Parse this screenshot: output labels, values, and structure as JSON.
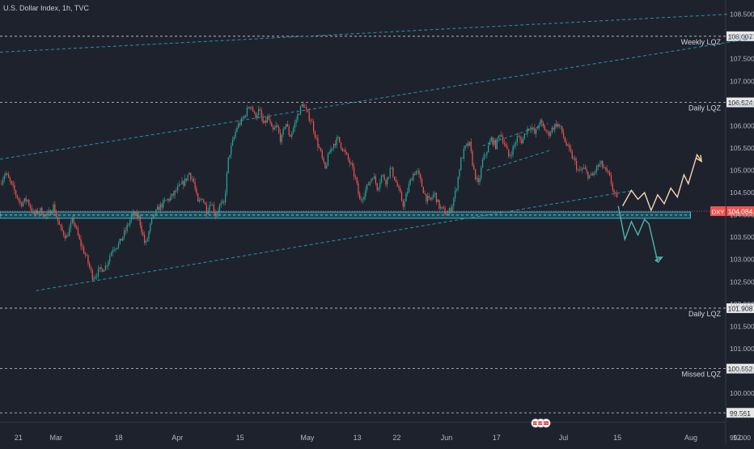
{
  "header": {
    "symbol_title": "U.S. Dollar Index, 1h, TVC"
  },
  "chart_data": {
    "type": "candlestick",
    "title": "U.S. Dollar Index, 1h, TVC",
    "y_axis": {
      "min": 98.84,
      "max": 108.82,
      "ticks": [
        "108.500",
        "108.000",
        "107.500",
        "107.000",
        "106.500",
        "106.000",
        "105.500",
        "105.000",
        "104.500",
        "104.000",
        "103.500",
        "103.000",
        "102.500",
        "102.000",
        "101.500",
        "101.000",
        "100.500",
        "100.000",
        "99.500",
        "99.000"
      ]
    },
    "x_axis": {
      "ticks": [
        {
          "label": "21",
          "t": 0.0
        },
        {
          "label": "Mar",
          "t": 8.6
        },
        {
          "label": "18",
          "t": 22.9
        },
        {
          "label": "Apr",
          "t": 36.3
        },
        {
          "label": "15",
          "t": 50.6
        },
        {
          "label": "May",
          "t": 66.0
        },
        {
          "label": "13",
          "t": 77.4
        },
        {
          "label": "22",
          "t": 86.4
        },
        {
          "label": "Jun",
          "t": 97.8
        },
        {
          "label": "17",
          "t": 109.2
        },
        {
          "label": "Jul",
          "t": 124.5
        },
        {
          "label": "15",
          "t": 136.8
        },
        {
          "label": "Aug",
          "t": 153.6
        },
        {
          "label": "12",
          "t": 164.1
        }
      ],
      "t_min": -4.2,
      "t_max": 168.0
    },
    "price_path": [
      [
        -4.2,
        104.7
      ],
      [
        -3,
        104.95
      ],
      [
        -1,
        104.55
      ],
      [
        0.5,
        104.25
      ],
      [
        2,
        104.35
      ],
      [
        3.5,
        104.0
      ],
      [
        5,
        104.1
      ],
      [
        6.5,
        103.95
      ],
      [
        8,
        104.2
      ],
      [
        9.5,
        103.7
      ],
      [
        11,
        103.5
      ],
      [
        12.5,
        103.9
      ],
      [
        14,
        103.4
      ],
      [
        15.5,
        103.05
      ],
      [
        17,
        102.6
      ],
      [
        18.5,
        102.75
      ],
      [
        20,
        102.85
      ],
      [
        21.5,
        103.25
      ],
      [
        23,
        103.35
      ],
      [
        24.5,
        103.65
      ],
      [
        26,
        104.0
      ],
      [
        27.5,
        103.95
      ],
      [
        29,
        103.3
      ],
      [
        30.5,
        103.9
      ],
      [
        32,
        104.15
      ],
      [
        33.5,
        104.3
      ],
      [
        35,
        104.4
      ],
      [
        36.5,
        104.6
      ],
      [
        38,
        104.75
      ],
      [
        39,
        104.95
      ],
      [
        40,
        104.75
      ],
      [
        41,
        104.25
      ],
      [
        42,
        104.4
      ],
      [
        43,
        104.1
      ],
      [
        44,
        104.3
      ],
      [
        45,
        104.0
      ],
      [
        46,
        104.2
      ],
      [
        47,
        104.25
      ],
      [
        48,
        105.3
      ],
      [
        49,
        105.65
      ],
      [
        50,
        106.0
      ],
      [
        51,
        106.1
      ],
      [
        52,
        106.3
      ],
      [
        53,
        106.5
      ],
      [
        54,
        106.2
      ],
      [
        55,
        106.35
      ],
      [
        56,
        106.0
      ],
      [
        57,
        106.2
      ],
      [
        58,
        105.85
      ],
      [
        59,
        106.0
      ],
      [
        60,
        105.65
      ],
      [
        61,
        106.1
      ],
      [
        62,
        105.75
      ],
      [
        63,
        106.0
      ],
      [
        64,
        106.3
      ],
      [
        65,
        106.5
      ],
      [
        66,
        106.25
      ],
      [
        67,
        106.1
      ],
      [
        68,
        105.7
      ],
      [
        69,
        105.4
      ],
      [
        70,
        105.0
      ],
      [
        71,
        105.4
      ],
      [
        72,
        105.6
      ],
      [
        73,
        105.7
      ],
      [
        74,
        105.5
      ],
      [
        75,
        105.3
      ],
      [
        76,
        105.1
      ],
      [
        77,
        104.8
      ],
      [
        78,
        104.3
      ],
      [
        79,
        104.5
      ],
      [
        80,
        104.7
      ],
      [
        81,
        104.9
      ],
      [
        82,
        104.6
      ],
      [
        83,
        104.9
      ],
      [
        84,
        104.75
      ],
      [
        85,
        105.05
      ],
      [
        86,
        104.8
      ],
      [
        87,
        104.5
      ],
      [
        88,
        104.2
      ],
      [
        89,
        104.6
      ],
      [
        90,
        104.9
      ],
      [
        91,
        105.0
      ],
      [
        92,
        104.7
      ],
      [
        93,
        104.4
      ],
      [
        94,
        104.3
      ],
      [
        95,
        104.5
      ],
      [
        96,
        104.2
      ],
      [
        97,
        104.1
      ],
      [
        98,
        104.0
      ],
      [
        99,
        104.2
      ],
      [
        100,
        104.6
      ],
      [
        101,
        105.2
      ],
      [
        102,
        105.5
      ],
      [
        103,
        105.6
      ],
      [
        104,
        105.0
      ],
      [
        105,
        104.65
      ],
      [
        106,
        105.2
      ],
      [
        107,
        105.45
      ],
      [
        108,
        105.7
      ],
      [
        109,
        105.55
      ],
      [
        110,
        105.85
      ],
      [
        111,
        105.6
      ],
      [
        112,
        105.3
      ],
      [
        113,
        105.5
      ],
      [
        114,
        105.75
      ],
      [
        115,
        105.65
      ],
      [
        116,
        105.9
      ],
      [
        117,
        106.0
      ],
      [
        118,
        105.8
      ],
      [
        119,
        106.1
      ],
      [
        120,
        105.95
      ],
      [
        121,
        105.8
      ],
      [
        122,
        105.95
      ],
      [
        123,
        106.05
      ],
      [
        124,
        105.9
      ],
      [
        125,
        105.6
      ],
      [
        126,
        105.4
      ],
      [
        127,
        105.2
      ],
      [
        128,
        104.95
      ],
      [
        129,
        105.05
      ],
      [
        130,
        104.9
      ],
      [
        131,
        104.85
      ],
      [
        132,
        105.05
      ],
      [
        133,
        105.15
      ],
      [
        134,
        105.0
      ],
      [
        135,
        104.85
      ],
      [
        136,
        104.5
      ],
      [
        137,
        104.25
      ]
    ],
    "drawings": {
      "bullish_projection": [
        [
          138,
          104.2
        ],
        [
          140,
          104.55
        ],
        [
          141.5,
          104.35
        ],
        [
          143,
          104.5
        ],
        [
          144.5,
          104.1
        ],
        [
          146,
          104.45
        ],
        [
          147.5,
          104.25
        ],
        [
          149,
          104.6
        ],
        [
          150.5,
          104.4
        ],
        [
          152,
          104.9
        ],
        [
          153,
          104.7
        ],
        [
          155,
          105.35
        ],
        [
          156,
          105.2
        ]
      ],
      "bearish_projection": [
        [
          137,
          104.2
        ],
        [
          138.5,
          103.45
        ],
        [
          140,
          103.85
        ],
        [
          141.5,
          103.55
        ],
        [
          143,
          103.9
        ],
        [
          144,
          103.8
        ],
        [
          146,
          102.95
        ],
        [
          145.5,
          102.98
        ],
        [
          147,
          103.05
        ]
      ],
      "level_lines": [
        {
          "price": 108.007,
          "label": "Weekly LQZ",
          "value": "108.007"
        },
        {
          "price": 106.524,
          "label": "Daily LQZ",
          "value": "106.524"
        },
        {
          "price": 101.908,
          "label": "Daily LQZ",
          "value": "101.908"
        },
        {
          "price": 100.552,
          "label": "Missed LQZ",
          "value": "100.552"
        },
        {
          "price": 99.561,
          "label": "",
          "value": "99.561"
        }
      ],
      "zone": {
        "top": 104.065,
        "bottom": 103.925,
        "t_start": -4.2,
        "t_end": 153.5
      },
      "channel_lines": [
        [
          [
            -4.2,
            107.65
          ],
          [
            162,
            108.5
          ]
        ],
        [
          [
            -4.2,
            105.25
          ],
          [
            169,
            107.98
          ]
        ],
        [
          [
            4,
            102.3
          ],
          [
            140.6,
            104.55
          ]
        ]
      ],
      "micro_channel": [
        [
          [
            106,
            105.55
          ],
          [
            121,
            106.05
          ]
        ],
        [
          [
            107,
            105.0
          ],
          [
            121.5,
            105.45
          ]
        ]
      ]
    },
    "current_price": {
      "symbol": "DXY",
      "value": "104.084",
      "price": 104.084
    },
    "colors": {
      "background": "#1e222d",
      "up": "#26a69a",
      "down": "#ef5350",
      "channel": "#2196a3",
      "zone": "#1a6b7c",
      "bull_path": "#f5d5b0",
      "bear_path": "#4db6ac",
      "level": "#c9ccd4",
      "price_line": "#ef5350"
    }
  },
  "footer": {
    "badge_icons": [
      "flag-icon",
      "flag-icon",
      "flag-icon"
    ]
  }
}
